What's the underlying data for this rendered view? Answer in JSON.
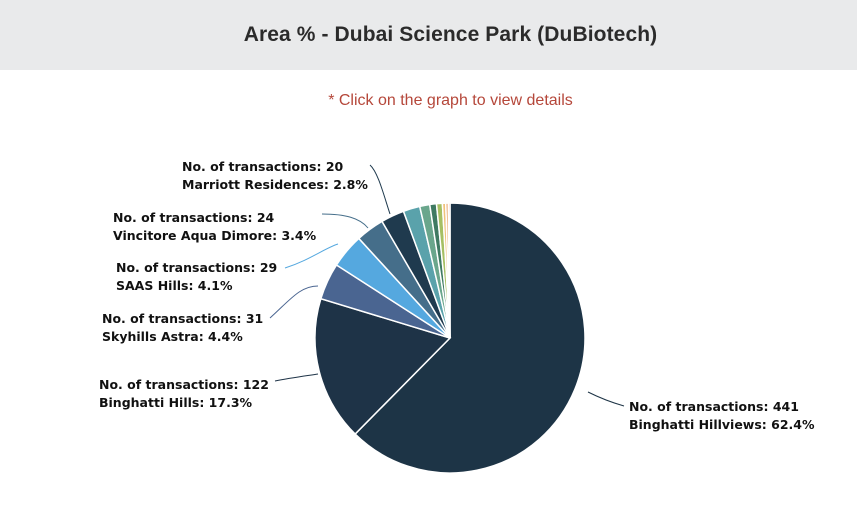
{
  "header": {
    "title": "Area % - Dubai Science Park (DuBiotech)"
  },
  "hint": "* Click on the graph to view details",
  "chart_data": {
    "type": "pie",
    "title": "Area % - Dubai Science Park (DuBiotech)",
    "slices": [
      {
        "name": "Binghatti Hillviews",
        "transactions": 441,
        "percent": 62.4,
        "color": "#1d3446",
        "label_line1": "No. of transactions: 441",
        "label_line2": "Binghatti Hillviews: 62.4%"
      },
      {
        "name": "Binghatti Hills",
        "transactions": 122,
        "percent": 17.3,
        "color": "#1e3347",
        "label_line1": "No. of transactions: 122",
        "label_line2": "Binghatti Hills: 17.3%"
      },
      {
        "name": "Skyhills Astra",
        "transactions": 31,
        "percent": 4.4,
        "color": "#4a6591",
        "label_line1": "No. of transactions: 31",
        "label_line2": "Skyhills Astra: 4.4%"
      },
      {
        "name": "SAAS Hills",
        "transactions": 29,
        "percent": 4.1,
        "color": "#55a8df",
        "label_line1": "No. of transactions: 29",
        "label_line2": "SAAS Hills: 4.1%"
      },
      {
        "name": "Vincitore Aqua Dimore",
        "transactions": 24,
        "percent": 3.4,
        "color": "#456e8a",
        "label_line1": "No. of transactions: 24",
        "label_line2": "Vincitore Aqua Dimore: 3.4%"
      },
      {
        "name": "Marriott Residences",
        "transactions": 20,
        "percent": 2.8,
        "color": "#1f3a4e",
        "label_line1": "No. of transactions: 20",
        "label_line2": "Marriott Residences: 2.8%"
      },
      {
        "name": "",
        "percent": 2.0,
        "color": "#5aa2ab"
      },
      {
        "name": "",
        "percent": 1.2,
        "color": "#6aa68c"
      },
      {
        "name": "",
        "percent": 0.8,
        "color": "#3f7a62"
      },
      {
        "name": "",
        "percent": 0.7,
        "color": "#a6bf63"
      },
      {
        "name": "",
        "percent": 0.4,
        "color": "#f0c27a"
      },
      {
        "name": "",
        "percent": 0.3,
        "color": "#e89a57"
      },
      {
        "name": "",
        "percent": 0.2,
        "color": "#e88a6a"
      }
    ],
    "start_angle_deg": 0,
    "direction": "clockwise",
    "legend": "none"
  }
}
